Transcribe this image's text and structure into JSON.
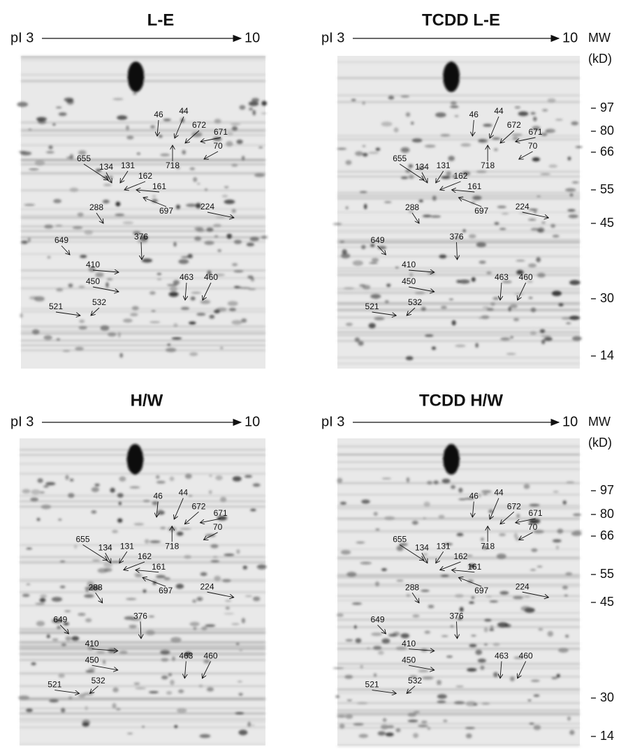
{
  "figure": {
    "panels": [
      {
        "title": "L-E",
        "pi_start": "pI 3",
        "pi_end": "10",
        "spots": [
          "46",
          "44",
          "672",
          "671",
          "70",
          "718",
          "655",
          "134",
          "131",
          "162",
          "161",
          "697",
          "224",
          "288",
          "649",
          "376",
          "410",
          "450",
          "463",
          "460",
          "521",
          "532"
        ]
      },
      {
        "title": "TCDD L-E",
        "pi_start": "pI 3",
        "pi_end": "10",
        "spots": [
          "46",
          "44",
          "672",
          "671",
          "70",
          "718",
          "655",
          "134",
          "131",
          "162",
          "161",
          "697",
          "224",
          "288",
          "649",
          "376",
          "410",
          "450",
          "463",
          "460",
          "521",
          "532"
        ],
        "mw_header": [
          "MW",
          "(kD)"
        ],
        "mw_ticks": [
          "97",
          "80",
          "66",
          "55",
          "45",
          "30",
          "14"
        ]
      },
      {
        "title": "H/W",
        "pi_start": "pI 3",
        "pi_end": "10",
        "spots": [
          "46",
          "44",
          "672",
          "671",
          "70",
          "718",
          "655",
          "134",
          "131",
          "162",
          "161",
          "697",
          "224",
          "288",
          "649",
          "376",
          "410",
          "450",
          "463",
          "460",
          "521",
          "532"
        ]
      },
      {
        "title": "TCDD H/W",
        "pi_start": "pI 3",
        "pi_end": "10",
        "spots": [
          "46",
          "44",
          "672",
          "671",
          "70",
          "718",
          "655",
          "134",
          "131",
          "162",
          "161",
          "697",
          "224",
          "288",
          "649",
          "376",
          "410",
          "450",
          "463",
          "460",
          "521",
          "532"
        ],
        "mw_header": [
          "MW",
          "(kD)"
        ],
        "mw_ticks": [
          "97",
          "80",
          "66",
          "55",
          "45",
          "30",
          "14"
        ]
      }
    ]
  }
}
